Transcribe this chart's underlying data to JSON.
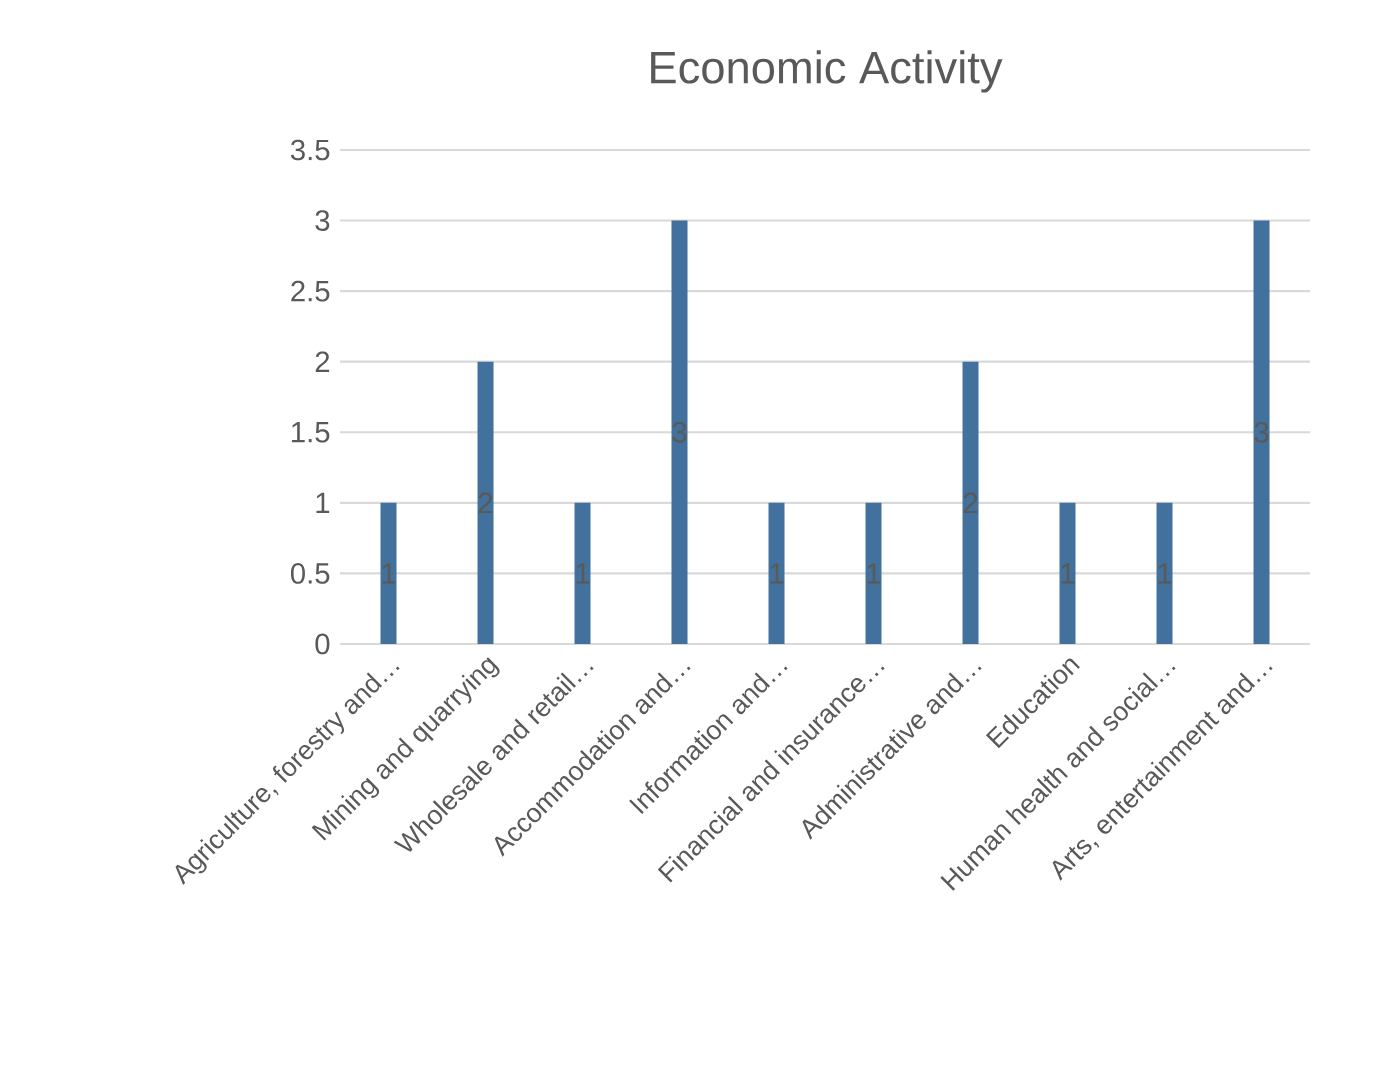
{
  "chart_data": {
    "type": "bar",
    "title": "Economic Activity",
    "categories": [
      "Agriculture, forestry and…",
      "Mining and quarrying",
      "Wholesale and retail…",
      "Accommodation and…",
      "Information and…",
      "Financial and insurance…",
      "Administrative and…",
      "Education",
      "Human health and social…",
      "Arts, entertainment and…"
    ],
    "values": [
      1,
      2,
      1,
      3,
      1,
      1,
      2,
      1,
      1,
      3
    ],
    "color": "#41719c",
    "ylim": [
      0,
      3.5
    ],
    "yticks": [
      0,
      0.5,
      1,
      1.5,
      2,
      2.5,
      3,
      3.5
    ],
    "grid": "y",
    "data_labels": true
  }
}
